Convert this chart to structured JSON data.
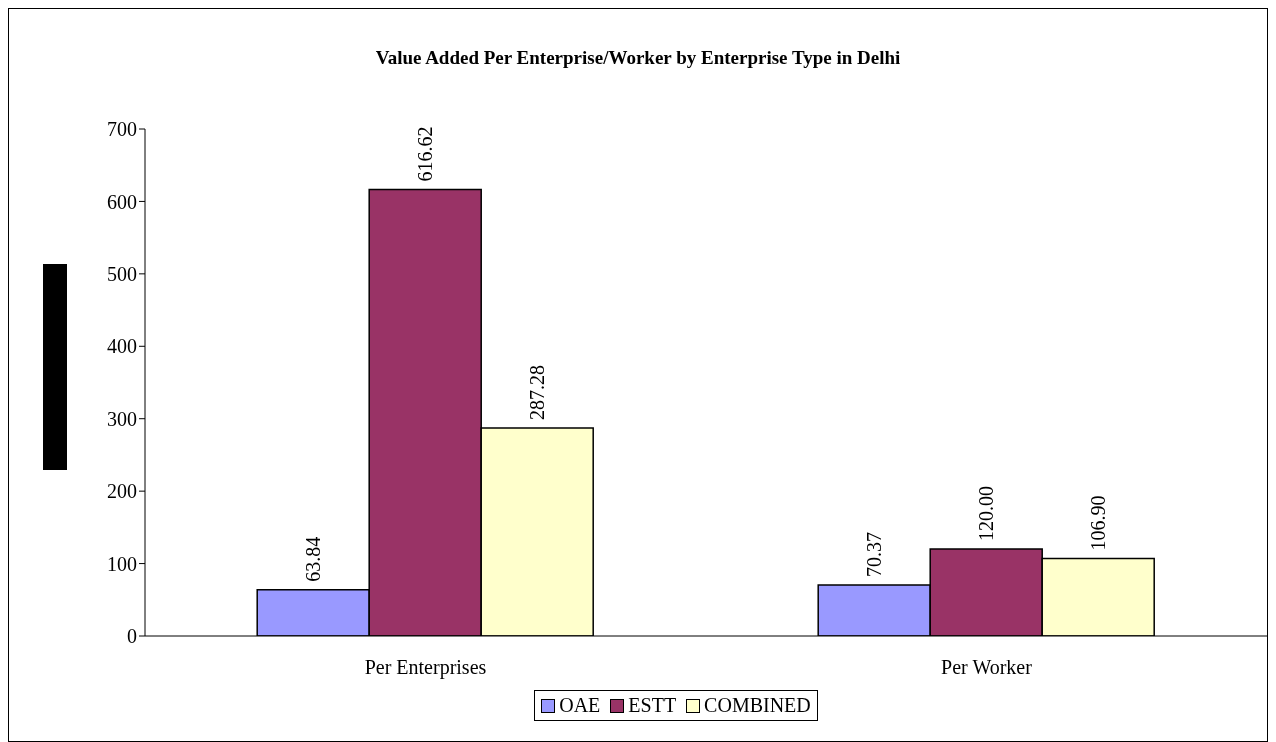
{
  "chart_data": {
    "type": "bar",
    "title": "Value Added Per Enterprise/Worker by Enterprise Type in Delhi",
    "categories": [
      "Per Enterprises",
      "Per Worker"
    ],
    "series": [
      {
        "name": "OAE",
        "color": "#9999ff",
        "values": [
          63.84,
          70.37
        ],
        "value_labels": [
          "63.84",
          "70.37"
        ]
      },
      {
        "name": "ESTT",
        "color": "#993366",
        "values": [
          616.62,
          120.0
        ],
        "value_labels": [
          "616.62",
          "120.00"
        ]
      },
      {
        "name": "COMBINED",
        "color": "#ffffcc",
        "values": [
          287.28,
          106.9
        ],
        "value_labels": [
          "287.28",
          "106.90"
        ]
      }
    ],
    "ylim": [
      0,
      700
    ],
    "yticks": [
      0,
      100,
      200,
      300,
      400,
      500,
      600,
      700
    ],
    "grid": false,
    "legend": "bottom"
  }
}
